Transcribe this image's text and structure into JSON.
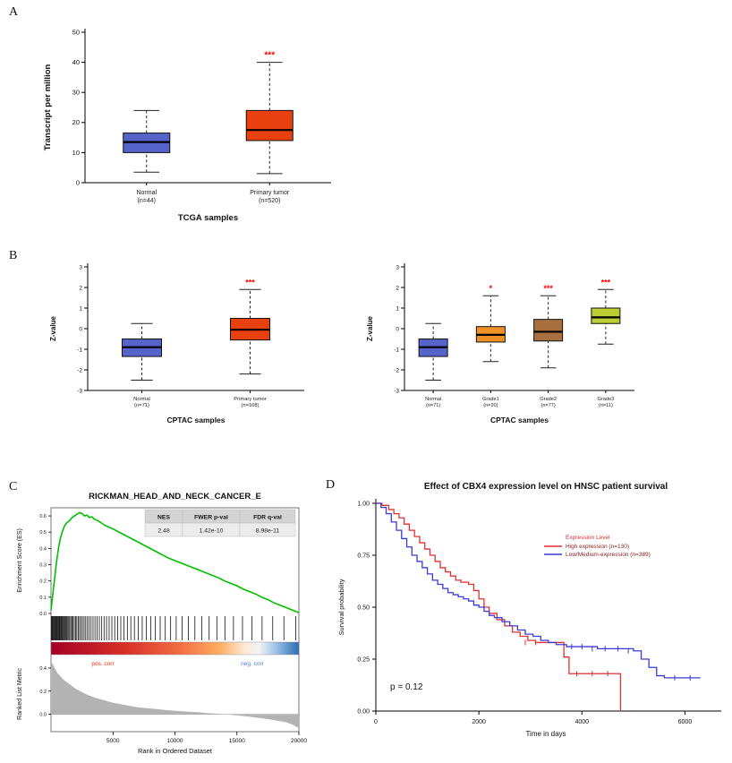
{
  "figure": {
    "panel_labels": [
      "A",
      "B",
      "C",
      "D"
    ]
  },
  "chart_data": [
    {
      "id": "panel_a",
      "type": "box",
      "title": "TCGA samples",
      "ylabel": "Transcript per million",
      "ylim": [
        0,
        50
      ],
      "yticks": [
        0,
        10,
        20,
        30,
        40,
        50
      ],
      "groups": [
        {
          "label": "Normal",
          "n_label": "(n=44)",
          "color": "#5663c8",
          "whisker_low": 3.5,
          "q1": 10,
          "median": 13.5,
          "q3": 16.5,
          "whisker_high": 24,
          "sig": ""
        },
        {
          "label": "Primary tumor",
          "n_label": "(n=520)",
          "color": "#e8400f",
          "whisker_low": 3,
          "q1": 14,
          "median": 17.5,
          "q3": 24,
          "whisker_high": 40,
          "sig": "***"
        }
      ]
    },
    {
      "id": "panel_b1",
      "type": "box",
      "title": "CPTAC samples",
      "ylabel": "Z-value",
      "ylim": [
        -3,
        3
      ],
      "yticks": [
        -3,
        -2,
        -1,
        0,
        1,
        2,
        3
      ],
      "groups": [
        {
          "label": "Normal",
          "n_label": "(n=71)",
          "color": "#5663c8",
          "whisker_low": -2.5,
          "q1": -1.35,
          "median": -0.9,
          "q3": -0.5,
          "whisker_high": 0.25,
          "sig": ""
        },
        {
          "label": "Primary tumor",
          "n_label": "(n=108)",
          "color": "#e8400f",
          "whisker_low": -2.2,
          "q1": -0.55,
          "median": -0.05,
          "q3": 0.5,
          "whisker_high": 1.9,
          "sig": "***"
        }
      ]
    },
    {
      "id": "panel_b2",
      "type": "box",
      "title": "CPTAC samples",
      "ylabel": "Z-value",
      "ylim": [
        -3,
        3
      ],
      "yticks": [
        -3,
        -2,
        -1,
        0,
        1,
        2,
        3
      ],
      "groups": [
        {
          "label": "Normal",
          "n_label": "(n=71)",
          "color": "#5663c8",
          "whisker_low": -2.5,
          "q1": -1.35,
          "median": -0.9,
          "q3": -0.5,
          "whisker_high": 0.25,
          "sig": ""
        },
        {
          "label": "Grade1",
          "n_label": "(n=20)",
          "color": "#ef9225",
          "whisker_low": -1.6,
          "q1": -0.65,
          "median": -0.3,
          "q3": 0.1,
          "whisker_high": 1.6,
          "sig": "*"
        },
        {
          "label": "Grade2",
          "n_label": "(n=77)",
          "color": "#a9703f",
          "whisker_low": -1.9,
          "q1": -0.6,
          "median": -0.15,
          "q3": 0.45,
          "whisker_high": 1.6,
          "sig": "***"
        },
        {
          "label": "Grade3",
          "n_label": "(n=11)",
          "color": "#bacd33",
          "whisker_low": -0.75,
          "q1": 0.25,
          "median": 0.55,
          "q3": 1.0,
          "whisker_high": 1.9,
          "sig": "***"
        }
      ]
    },
    {
      "id": "panel_c",
      "type": "gsea",
      "title": "RICKMAN_HEAD_AND_NECK_CANCER_E",
      "stats": {
        "headers": [
          "NES",
          "FWER p-val",
          "FDR q-val"
        ],
        "values": [
          "2.48",
          "1.42e-10",
          "8.98e-11"
        ]
      },
      "ylabel_top": "Enrichment Score (ES)",
      "ylabel_bottom": "Ranked List Metric",
      "xlabel": "Rank in Ordered Dataset",
      "pos_label": "pos. corr",
      "neg_label": "neg. corr",
      "pos_color": "#ff2a00",
      "neg_color": "#4a7fd4",
      "curve_color": "#00c000",
      "es_ylim": [
        0,
        0.65
      ],
      "es_yticks": [
        0,
        0.1,
        0.2,
        0.3,
        0.4,
        0.5,
        0.6
      ],
      "metric_ylim": [
        -0.15,
        0.5
      ],
      "metric_yticks": [
        0,
        0.2,
        0.4
      ],
      "xlim": [
        0,
        20000
      ],
      "xticks": [
        5000,
        10000,
        15000,
        20000
      ],
      "heat_stops": [
        [
          "0%",
          "#a50026"
        ],
        [
          "30%",
          "#d73027"
        ],
        [
          "52%",
          "#f46d43"
        ],
        [
          "68%",
          "#fdae61"
        ],
        [
          "78%",
          "#fee8d6"
        ],
        [
          "84%",
          "#f2f2f2"
        ],
        [
          "90%",
          "#a6c8e8"
        ],
        [
          "100%",
          "#2b6cb3"
        ]
      ],
      "es_curve": [
        [
          0,
          0.02
        ],
        [
          150,
          0.12
        ],
        [
          300,
          0.22
        ],
        [
          450,
          0.32
        ],
        [
          600,
          0.4
        ],
        [
          750,
          0.46
        ],
        [
          900,
          0.5
        ],
        [
          1100,
          0.54
        ],
        [
          1300,
          0.56
        ],
        [
          1500,
          0.57
        ],
        [
          1700,
          0.59
        ],
        [
          1900,
          0.6
        ],
        [
          2100,
          0.61
        ],
        [
          2300,
          0.62
        ],
        [
          2500,
          0.615
        ],
        [
          2700,
          0.6
        ],
        [
          2900,
          0.605
        ],
        [
          3100,
          0.59
        ],
        [
          3300,
          0.595
        ],
        [
          3500,
          0.58
        ],
        [
          3800,
          0.57
        ],
        [
          4100,
          0.555
        ],
        [
          4400,
          0.54
        ],
        [
          4700,
          0.53
        ],
        [
          5000,
          0.52
        ],
        [
          5500,
          0.5
        ],
        [
          6000,
          0.48
        ],
        [
          6500,
          0.46
        ],
        [
          7000,
          0.44
        ],
        [
          7500,
          0.42
        ],
        [
          8000,
          0.4
        ],
        [
          8500,
          0.38
        ],
        [
          9000,
          0.36
        ],
        [
          9500,
          0.34
        ],
        [
          10000,
          0.325
        ],
        [
          10500,
          0.31
        ],
        [
          11000,
          0.295
        ],
        [
          11500,
          0.28
        ],
        [
          12000,
          0.265
        ],
        [
          12500,
          0.25
        ],
        [
          13000,
          0.235
        ],
        [
          13500,
          0.22
        ],
        [
          14000,
          0.2
        ],
        [
          14500,
          0.185
        ],
        [
          15000,
          0.17
        ],
        [
          15500,
          0.15
        ],
        [
          16000,
          0.135
        ],
        [
          16500,
          0.12
        ],
        [
          17000,
          0.1
        ],
        [
          17500,
          0.085
        ],
        [
          18000,
          0.065
        ],
        [
          18500,
          0.05
        ],
        [
          19000,
          0.035
        ],
        [
          19500,
          0.02
        ],
        [
          20000,
          0.005
        ]
      ],
      "hits": [
        30,
        80,
        140,
        200,
        255,
        310,
        370,
        430,
        490,
        545,
        600,
        660,
        720,
        790,
        850,
        910,
        980,
        1050,
        1120,
        1200,
        1270,
        1350,
        1430,
        1510,
        1600,
        1690,
        1780,
        1880,
        1980,
        2080,
        2190,
        2300,
        2420,
        2540,
        2670,
        2800,
        2940,
        3080,
        3230,
        3390,
        3550,
        3720,
        3900,
        4090,
        4280,
        4480,
        4690,
        4910,
        5140,
        5380,
        5630,
        5890,
        6160,
        6440,
        6730,
        7040,
        7360,
        7700,
        8050,
        8420,
        8810,
        9220,
        9650,
        10100,
        10580,
        11080,
        11610,
        12170,
        12760,
        13380,
        14030,
        14720,
        15450,
        16220,
        17030,
        17890,
        18790,
        19740
      ],
      "ranked_metric": [
        [
          0,
          0.46
        ],
        [
          500,
          0.36
        ],
        [
          1000,
          0.3
        ],
        [
          1500,
          0.26
        ],
        [
          2000,
          0.22
        ],
        [
          2500,
          0.19
        ],
        [
          3000,
          0.165
        ],
        [
          3500,
          0.145
        ],
        [
          4000,
          0.13
        ],
        [
          4500,
          0.115
        ],
        [
          5000,
          0.1
        ],
        [
          5500,
          0.09
        ],
        [
          6000,
          0.08
        ],
        [
          6500,
          0.07
        ],
        [
          7000,
          0.06
        ],
        [
          7500,
          0.055
        ],
        [
          8000,
          0.05
        ],
        [
          8500,
          0.045
        ],
        [
          9000,
          0.04
        ],
        [
          9500,
          0.035
        ],
        [
          10000,
          0.03
        ],
        [
          10500,
          0.027
        ],
        [
          11000,
          0.023
        ],
        [
          11500,
          0.02
        ],
        [
          12000,
          0.016
        ],
        [
          12500,
          0.012
        ],
        [
          13000,
          0.008
        ],
        [
          13500,
          0.004
        ],
        [
          14000,
          0.0
        ],
        [
          14500,
          -0.005
        ],
        [
          15000,
          -0.01
        ],
        [
          15500,
          -0.015
        ],
        [
          16000,
          -0.02
        ],
        [
          16500,
          -0.027
        ],
        [
          17000,
          -0.035
        ],
        [
          17500,
          -0.042
        ],
        [
          18000,
          -0.05
        ],
        [
          18500,
          -0.06
        ],
        [
          19000,
          -0.07
        ],
        [
          19500,
          -0.09
        ],
        [
          20000,
          -0.12
        ]
      ]
    },
    {
      "id": "panel_d",
      "type": "km",
      "title": "Effect of CBX4 expression level on HNSC patient survival",
      "xlabel": "Time in days",
      "ylabel": "Survival probability",
      "xlim": [
        0,
        6600
      ],
      "xticks": [
        0,
        2000,
        4000,
        6000
      ],
      "yticks": [
        0,
        0.25,
        0.5,
        0.75,
        1
      ],
      "ytick_labels": [
        "0.00",
        "0.25",
        "0.50",
        "0.75",
        "1.00"
      ],
      "annotation": "p = 0.12",
      "legend": {
        "title": "Expression Level",
        "title_color": "#e03131",
        "entry_color": "#8b1a1a"
      },
      "series": [
        {
          "name": "High expression (n=130)",
          "color": "#e03131",
          "points": [
            [
              0,
              1.0
            ],
            [
              120,
              0.99
            ],
            [
              250,
              0.97
            ],
            [
              350,
              0.95
            ],
            [
              450,
              0.93
            ],
            [
              550,
              0.9
            ],
            [
              650,
              0.87
            ],
            [
              750,
              0.84
            ],
            [
              850,
              0.81
            ],
            [
              950,
              0.78
            ],
            [
              1050,
              0.75
            ],
            [
              1150,
              0.72
            ],
            [
              1250,
              0.69
            ],
            [
              1350,
              0.67
            ],
            [
              1450,
              0.65
            ],
            [
              1550,
              0.63
            ],
            [
              1650,
              0.62
            ],
            [
              1800,
              0.61
            ],
            [
              1900,
              0.58
            ],
            [
              2000,
              0.54
            ],
            [
              2100,
              0.5
            ],
            [
              2200,
              0.47
            ],
            [
              2350,
              0.44
            ],
            [
              2500,
              0.41
            ],
            [
              2650,
              0.38
            ],
            [
              2800,
              0.36
            ],
            [
              2950,
              0.34
            ],
            [
              3100,
              0.33
            ],
            [
              3550,
              0.33
            ],
            [
              3650,
              0.26
            ],
            [
              3750,
              0.18
            ],
            [
              4000,
              0.18
            ],
            [
              4650,
              0.18
            ],
            [
              4750,
              0.0
            ]
          ],
          "censors": [
            [
              2900,
              0.33
            ],
            [
              3100,
              0.33
            ],
            [
              3900,
              0.18
            ],
            [
              4200,
              0.18
            ],
            [
              4500,
              0.18
            ]
          ]
        },
        {
          "name": "Low/Medium-expression (n=389)",
          "color": "#3b3bd6",
          "points": [
            [
              0,
              1.0
            ],
            [
              100,
              0.98
            ],
            [
              200,
              0.95
            ],
            [
              300,
              0.91
            ],
            [
              400,
              0.87
            ],
            [
              500,
              0.83
            ],
            [
              600,
              0.79
            ],
            [
              700,
              0.75
            ],
            [
              800,
              0.72
            ],
            [
              900,
              0.69
            ],
            [
              1000,
              0.66
            ],
            [
              1100,
              0.63
            ],
            [
              1200,
              0.61
            ],
            [
              1300,
              0.59
            ],
            [
              1400,
              0.57
            ],
            [
              1500,
              0.56
            ],
            [
              1600,
              0.55
            ],
            [
              1700,
              0.54
            ],
            [
              1800,
              0.53
            ],
            [
              1900,
              0.51
            ],
            [
              2000,
              0.5
            ],
            [
              2100,
              0.48
            ],
            [
              2200,
              0.46
            ],
            [
              2300,
              0.45
            ],
            [
              2450,
              0.43
            ],
            [
              2600,
              0.41
            ],
            [
              2750,
              0.39
            ],
            [
              2900,
              0.37
            ],
            [
              3050,
              0.36
            ],
            [
              3200,
              0.34
            ],
            [
              3350,
              0.33
            ],
            [
              3500,
              0.32
            ],
            [
              3700,
              0.31
            ],
            [
              4000,
              0.31
            ],
            [
              4300,
              0.3
            ],
            [
              4700,
              0.3
            ],
            [
              5000,
              0.29
            ],
            [
              5150,
              0.25
            ],
            [
              5300,
              0.21
            ],
            [
              5450,
              0.17
            ],
            [
              5600,
              0.16
            ],
            [
              6300,
              0.16
            ]
          ],
          "censors": [
            [
              3800,
              0.31
            ],
            [
              4000,
              0.31
            ],
            [
              4200,
              0.3
            ],
            [
              4450,
              0.3
            ],
            [
              4700,
              0.3
            ],
            [
              4900,
              0.29
            ],
            [
              5800,
              0.16
            ],
            [
              6100,
              0.16
            ]
          ]
        }
      ]
    }
  ]
}
